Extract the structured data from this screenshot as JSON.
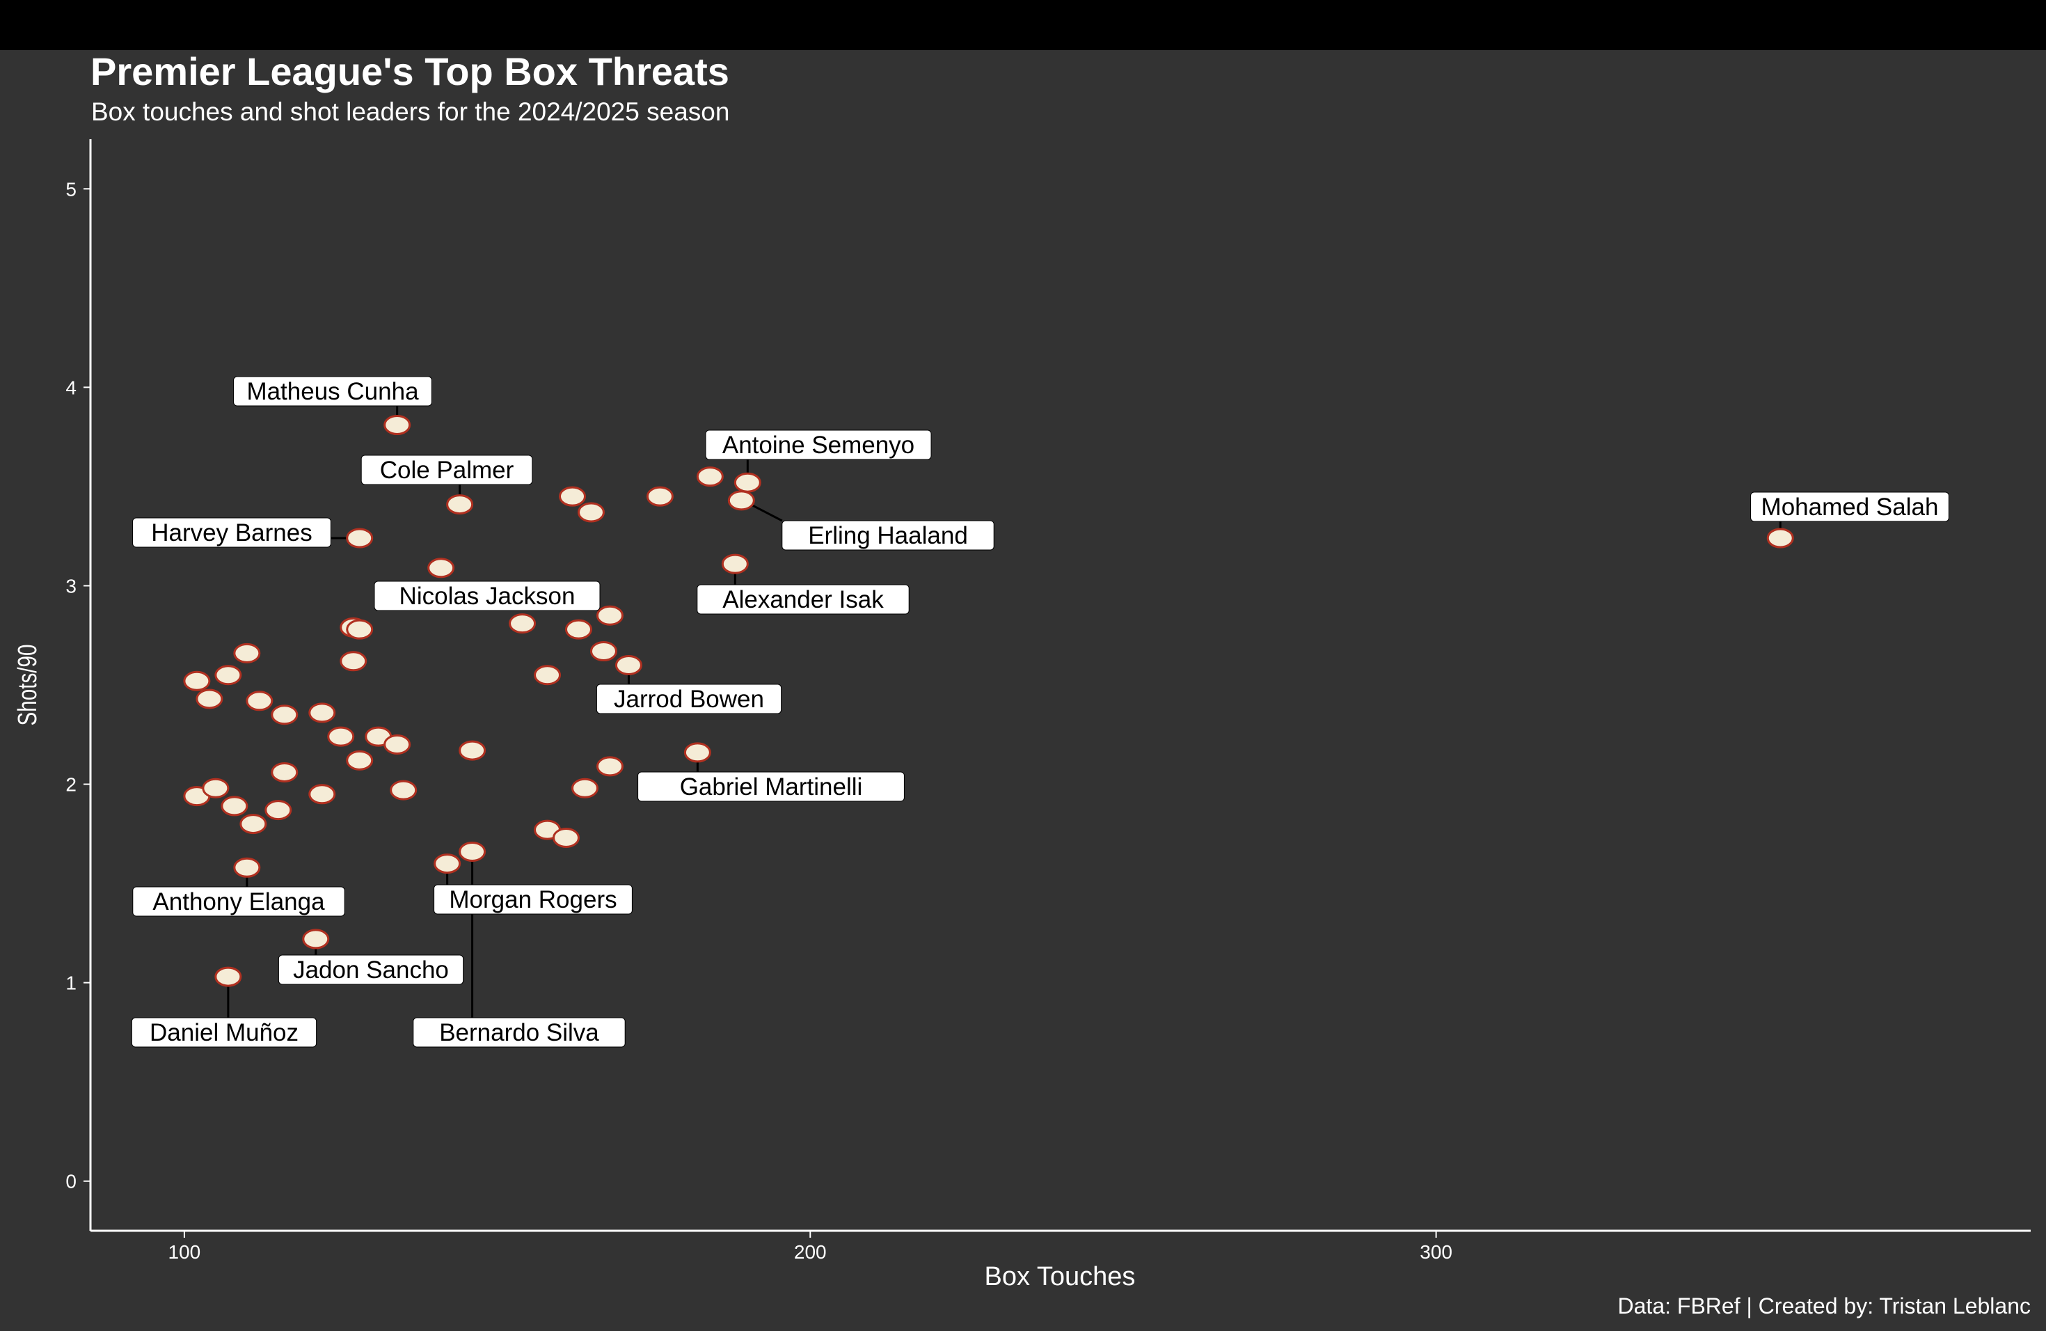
{
  "chart_data": {
    "type": "scatter",
    "title": "Premier League's Top Box Threats",
    "subtitle": "Box touches and shot leaders for the 2024/2025 season",
    "caption": "Data: FBRef | Created by: Tristan Leblanc",
    "xlabel": "Box Touches",
    "ylabel": "Shots/90",
    "xlim": [
      85,
      395
    ],
    "ylim": [
      -0.25,
      5.25
    ],
    "x_ticks": [
      100,
      200,
      300
    ],
    "y_ticks": [
      0,
      1,
      2,
      3,
      4,
      5
    ],
    "grid": false,
    "colors": {
      "background": "#333333",
      "point_fill": "#f5ecd7",
      "point_edge": "#b03020",
      "text": "#ffffff",
      "label_fill": "#ffffff",
      "label_text": "#000000"
    },
    "points": [
      {
        "x": 355,
        "y": 3.24,
        "label": "Mohamed Salah"
      },
      {
        "x": 134,
        "y": 3.81,
        "label": "Matheus Cunha"
      },
      {
        "x": 144,
        "y": 3.41,
        "label": "Cole Palmer"
      },
      {
        "x": 190,
        "y": 3.52,
        "label": "Antoine Semenyo"
      },
      {
        "x": 189,
        "y": 3.43,
        "label": "Erling Haaland"
      },
      {
        "x": 128,
        "y": 3.24,
        "label": "Harvey Barnes"
      },
      {
        "x": 141,
        "y": 3.09,
        "label": "Nicolas Jackson"
      },
      {
        "x": 188,
        "y": 3.11,
        "label": "Alexander Isak"
      },
      {
        "x": 171,
        "y": 2.6,
        "label": "Jarrod Bowen"
      },
      {
        "x": 182,
        "y": 2.16,
        "label": "Gabriel Martinelli"
      },
      {
        "x": 110,
        "y": 1.58,
        "label": "Anthony Elanga"
      },
      {
        "x": 142,
        "y": 1.6,
        "label": "Morgan Rogers"
      },
      {
        "x": 121,
        "y": 1.22,
        "label": "Jadon Sancho"
      },
      {
        "x": 107,
        "y": 1.03,
        "label": "Daniel Muñoz"
      },
      {
        "x": 146,
        "y": 1.66,
        "label": "Bernardo Silva"
      },
      {
        "x": 162,
        "y": 3.45
      },
      {
        "x": 165,
        "y": 3.37
      },
      {
        "x": 176,
        "y": 3.45
      },
      {
        "x": 184,
        "y": 3.55
      },
      {
        "x": 127,
        "y": 2.79
      },
      {
        "x": 128,
        "y": 2.78
      },
      {
        "x": 127,
        "y": 2.62
      },
      {
        "x": 154,
        "y": 2.81
      },
      {
        "x": 163,
        "y": 2.78
      },
      {
        "x": 168,
        "y": 2.85
      },
      {
        "x": 167,
        "y": 2.67
      },
      {
        "x": 158,
        "y": 2.55
      },
      {
        "x": 102,
        "y": 2.52
      },
      {
        "x": 104,
        "y": 2.43
      },
      {
        "x": 107,
        "y": 2.55
      },
      {
        "x": 110,
        "y": 2.66
      },
      {
        "x": 112,
        "y": 2.42
      },
      {
        "x": 116,
        "y": 2.35
      },
      {
        "x": 122,
        "y": 2.36
      },
      {
        "x": 125,
        "y": 2.24
      },
      {
        "x": 131,
        "y": 2.24
      },
      {
        "x": 134,
        "y": 2.2
      },
      {
        "x": 128,
        "y": 2.12
      },
      {
        "x": 146,
        "y": 2.17
      },
      {
        "x": 116,
        "y": 2.06
      },
      {
        "x": 102,
        "y": 1.94
      },
      {
        "x": 105,
        "y": 1.98
      },
      {
        "x": 108,
        "y": 1.89
      },
      {
        "x": 111,
        "y": 1.8
      },
      {
        "x": 115,
        "y": 1.87
      },
      {
        "x": 122,
        "y": 1.95
      },
      {
        "x": 135,
        "y": 1.97
      },
      {
        "x": 168,
        "y": 2.09
      },
      {
        "x": 164,
        "y": 1.98
      },
      {
        "x": 158,
        "y": 1.77
      },
      {
        "x": 161,
        "y": 1.73
      }
    ]
  }
}
